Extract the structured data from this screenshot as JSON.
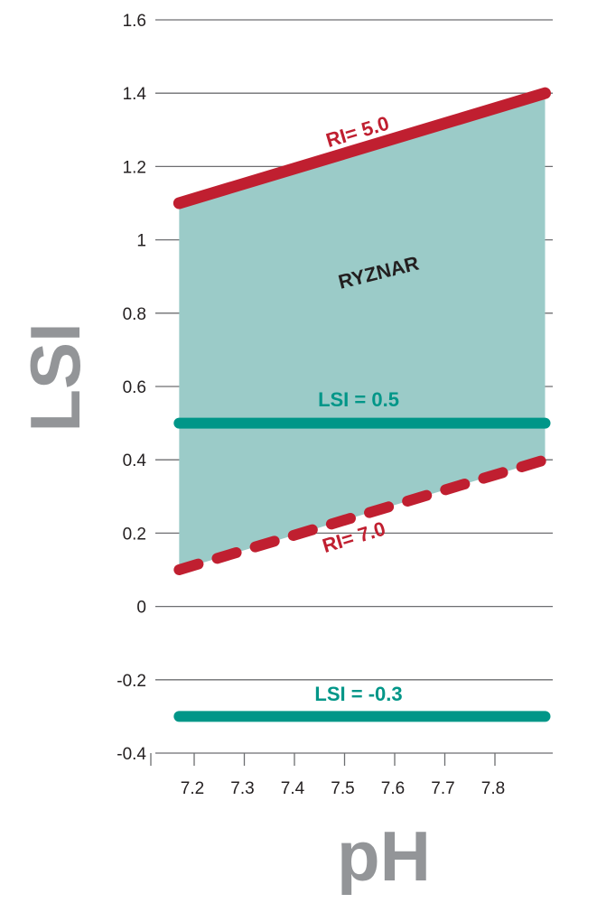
{
  "chart_data": {
    "type": "line",
    "title": "",
    "xlabel": "pH",
    "ylabel": "LSI",
    "xlim": [
      7.1,
      7.95
    ],
    "ylim": [
      -0.4,
      1.6
    ],
    "x_ticks": [
      "7.2",
      "7.3",
      "7.4",
      "7.5",
      "7.6",
      "7.7",
      "7.8"
    ],
    "y_ticks": [
      "1.6",
      "1.4",
      "1.2",
      "1",
      "0.8",
      "0.6",
      "0.4",
      "0.2",
      "0",
      "-0.2",
      "-0.4"
    ],
    "grid": true,
    "series": [
      {
        "name": "RI= 5.0",
        "x": [
          7.17,
          7.9
        ],
        "y": [
          1.1,
          1.4
        ],
        "style": "solid",
        "color": "#c01f30"
      },
      {
        "name": "RI= 7.0",
        "x": [
          7.17,
          7.9
        ],
        "y": [
          0.1,
          0.4
        ],
        "style": "dashed",
        "color": "#c01f30"
      },
      {
        "name": "LSI = 0.5",
        "x": [
          7.17,
          7.9
        ],
        "y": [
          0.5,
          0.5
        ],
        "style": "solid",
        "color": "#009688"
      },
      {
        "name": "LSI = -0.3",
        "x": [
          7.17,
          7.9
        ],
        "y": [
          -0.3,
          -0.3
        ],
        "style": "solid",
        "color": "#009688"
      }
    ],
    "region": {
      "label": "RYZNAR",
      "between": [
        "RI= 7.0",
        "RI= 5.0"
      ],
      "color": "#9bcbc8"
    },
    "colors": {
      "red": "#c01f30",
      "teal": "#009688",
      "fill": "#9bcbc8",
      "axis_title": "#939598",
      "grid": "#6d6e71"
    }
  }
}
